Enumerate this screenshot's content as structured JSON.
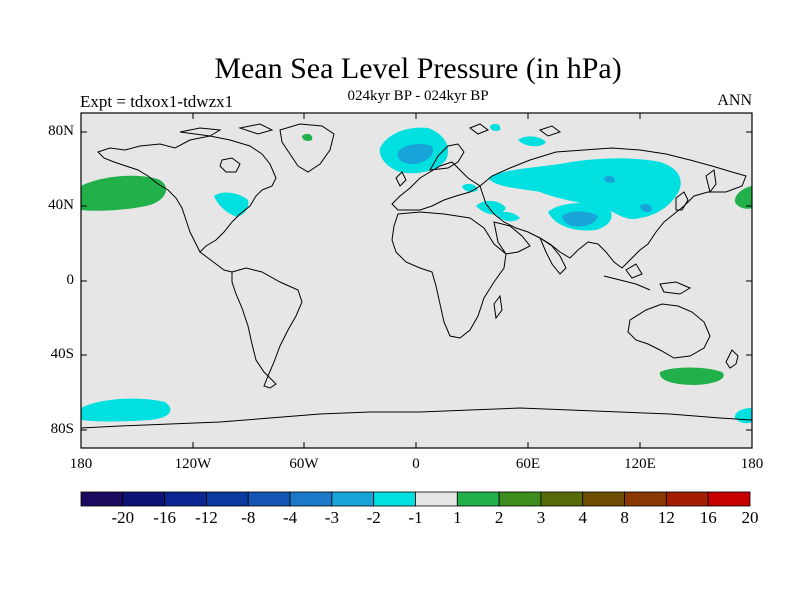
{
  "header": {
    "title": "Mean Sea Level Pressure (in hPa)",
    "subtitle": "024kyr BP - 024kyr BP",
    "left_label": "Expt = tdxox1-tdwzx1",
    "right_label": "ANN"
  },
  "axes": {
    "y_ticks": [
      "80N",
      "40N",
      "0",
      "40S",
      "80S"
    ],
    "x_ticks": [
      "180",
      "120W",
      "60W",
      "0",
      "60E",
      "120E",
      "180"
    ]
  },
  "colorbar": {
    "labels": [
      "-20",
      "-16",
      "-12",
      "-8",
      "-4",
      "-3",
      "-2",
      "-1",
      "1",
      "2",
      "3",
      "4",
      "8",
      "12",
      "16",
      "20"
    ],
    "colors": [
      "#1b0a5e",
      "#0c1475",
      "#0a2690",
      "#0a3aa0",
      "#1456b4",
      "#1c78c8",
      "#18a4d8",
      "#00e0e0",
      "#e6e6e6",
      "#22b04a",
      "#3c8c1e",
      "#566a0a",
      "#6e4e04",
      "#8a3802",
      "#a41e04",
      "#c80000"
    ]
  },
  "colors": {
    "background": "#e6e6e6",
    "cyan_neg1": "#00e0e0",
    "blue_neg2": "#18a4d8",
    "green_pos1": "#22b04a"
  }
}
